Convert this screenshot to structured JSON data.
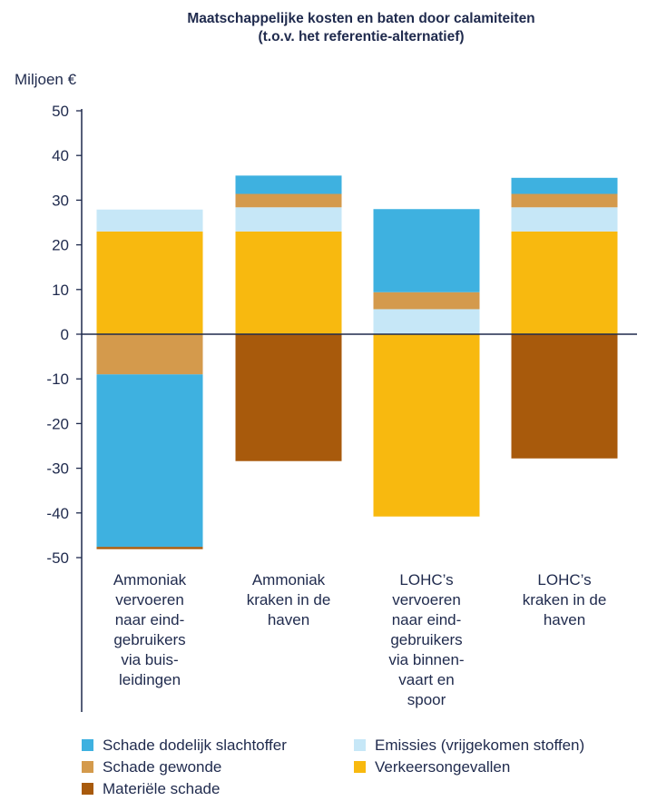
{
  "chart_data": {
    "type": "bar",
    "stacked": true,
    "title_lines": [
      "Maatschappelijke kosten en baten door calamiteiten",
      "(t.o.v. het referentie-alternatief)"
    ],
    "unit_label": "Miljoen €",
    "ylim": [
      -50,
      50
    ],
    "yticks": [
      50,
      40,
      30,
      20,
      10,
      0,
      -10,
      -20,
      -30,
      -40,
      -50
    ],
    "categories": [
      [
        "Ammoniak",
        "vervoeren",
        "naar eind-",
        "gebruikers",
        "via buis-",
        "leidingen"
      ],
      [
        "Ammoniak",
        "kraken in de",
        "haven"
      ],
      [
        "LOHC’s",
        "vervoeren",
        "naar eind-",
        "gebruikers",
        "via binnen-",
        "vaart en",
        "spoor"
      ],
      [
        "LOHC’s",
        "kraken in de",
        "haven"
      ]
    ],
    "series": [
      {
        "name": "Schade dodelijk slachtoffer",
        "color": "#3eb1e0",
        "values": [
          -38.6,
          4.1,
          18.6,
          3.6
        ]
      },
      {
        "name": "Emissies (vrijgekomen stoffen)",
        "color": "#c6e7f7",
        "values": [
          4.9,
          5.4,
          5.6,
          5.4
        ]
      },
      {
        "name": "Schade gewonde",
        "color": "#d49a4c",
        "values": [
          -9.0,
          3.0,
          3.8,
          3.0
        ]
      },
      {
        "name": "Verkeersongevallen",
        "color": "#f8b90f",
        "values": [
          23.0,
          23.0,
          -40.8,
          23.0
        ]
      },
      {
        "name": "Materiële schade",
        "color": "#a85a0c",
        "values": [
          -0.5,
          -28.4,
          0,
          -27.8
        ]
      }
    ],
    "stack_order": [
      3,
      1,
      2,
      0,
      4
    ],
    "legend_placement": "bottom",
    "grid": false
  }
}
